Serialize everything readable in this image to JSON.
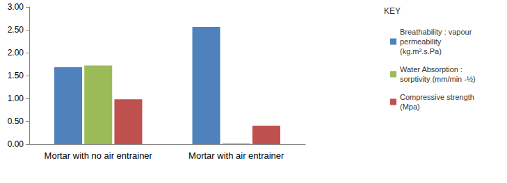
{
  "chart_data": {
    "type": "bar",
    "legend_title": "KEY",
    "categories": [
      "Mortar with no air entrainer",
      "Mortar with air entrainer"
    ],
    "series": [
      {
        "name": "Breathability : vapour permeability (kg.m².s.Pa)",
        "color": "#4f81bd",
        "values": [
          1.68,
          2.56
        ]
      },
      {
        "name": "Water Absorption : sorptivity (mm/min -½)",
        "color": "#9bbb59",
        "values": [
          1.72,
          0.02
        ]
      },
      {
        "name": "Compressive strength (Mpa)",
        "color": "#c0504d",
        "values": [
          0.98,
          0.4
        ]
      }
    ],
    "ylim": [
      0,
      3
    ],
    "yticks": [
      {
        "value": 0,
        "label": "0.00"
      },
      {
        "value": 0.5,
        "label": "0.50"
      },
      {
        "value": 1,
        "label": "1.00"
      },
      {
        "value": 1.5,
        "label": "1.50"
      },
      {
        "value": 2,
        "label": "2.00"
      },
      {
        "value": 2.5,
        "label": "2.50"
      },
      {
        "value": 3,
        "label": "3.00"
      }
    ],
    "grid": false,
    "legend": "right"
  }
}
